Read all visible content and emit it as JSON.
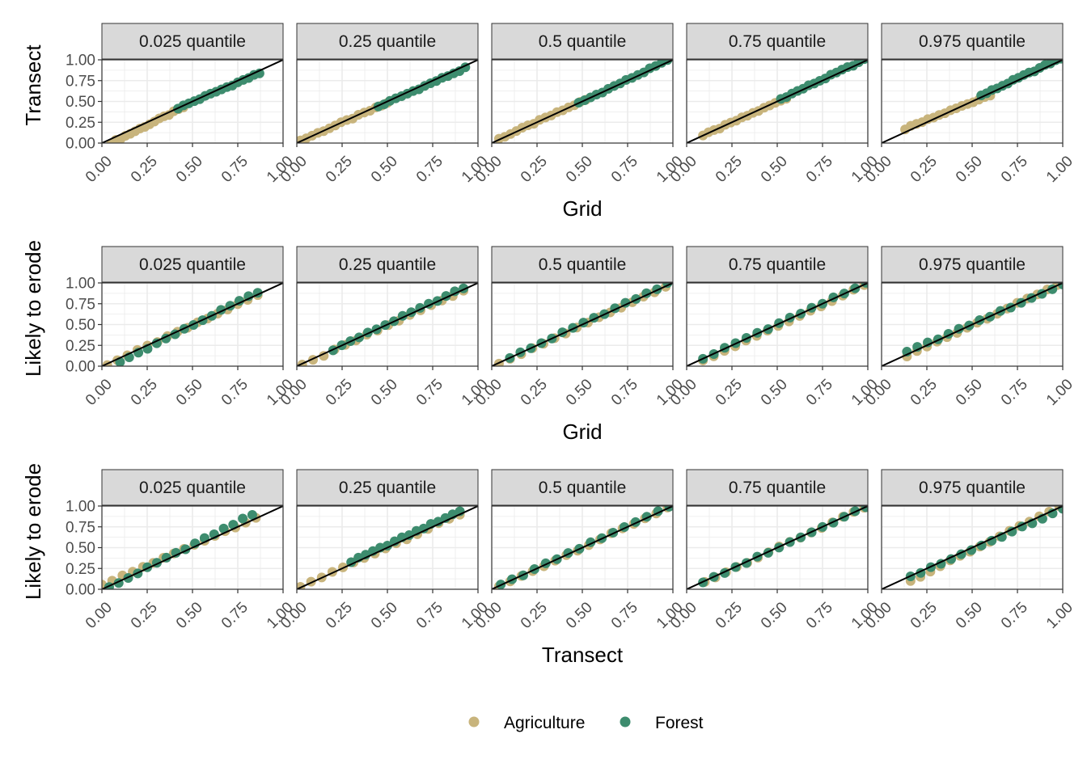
{
  "chart_data": {
    "type": "scatter",
    "facet_labels": [
      "0.025 quantile",
      "0.25 quantile",
      "0.5 quantile",
      "0.75 quantile",
      "0.975 quantile"
    ],
    "colors": {
      "Agriculture": "#c8b47c",
      "Forest": "#3d8c6e",
      "reference_line": "#000000",
      "strip_fill": "#d9d9d9",
      "grid": "#ebebeb"
    },
    "legend": {
      "position": "bottom",
      "entries": [
        "Agriculture",
        "Forest"
      ]
    },
    "reference_line": {
      "slope": 1,
      "intercept": 0
    },
    "rows": [
      {
        "xlabel": "Grid",
        "ylabel": "Transect",
        "xlim": [
          0,
          1
        ],
        "ylim": [
          0,
          1
        ],
        "xticks": [
          "0.00",
          "0.25",
          "0.50",
          "0.75",
          "1.00"
        ],
        "yticks": [
          "0.00",
          "0.25",
          "0.50",
          "0.75",
          "1.00"
        ],
        "panels": [
          {
            "facet": "0.025 quantile",
            "series": [
              {
                "name": "Agriculture",
                "x_start": 0.05,
                "x_end": 0.45,
                "y_start": 0.0,
                "y_end": 0.43
              },
              {
                "name": "Forest",
                "x_start": 0.42,
                "x_end": 0.87,
                "y_start": 0.42,
                "y_end": 0.84
              }
            ]
          },
          {
            "facet": "0.25 quantile",
            "series": [
              {
                "name": "Agriculture",
                "x_start": 0.02,
                "x_end": 0.5,
                "y_start": 0.03,
                "y_end": 0.48
              },
              {
                "name": "Forest",
                "x_start": 0.45,
                "x_end": 0.93,
                "y_start": 0.44,
                "y_end": 0.9
              }
            ]
          },
          {
            "facet": "0.5 quantile",
            "series": [
              {
                "name": "Agriculture",
                "x_start": 0.04,
                "x_end": 0.52,
                "y_start": 0.05,
                "y_end": 0.52
              },
              {
                "name": "Forest",
                "x_start": 0.48,
                "x_end": 0.97,
                "y_start": 0.48,
                "y_end": 0.99
              }
            ]
          },
          {
            "facet": "0.75 quantile",
            "series": [
              {
                "name": "Agriculture",
                "x_start": 0.09,
                "x_end": 0.55,
                "y_start": 0.09,
                "y_end": 0.54
              },
              {
                "name": "Forest",
                "x_start": 0.52,
                "x_end": 0.98,
                "y_start": 0.53,
                "y_end": 1.0
              }
            ]
          },
          {
            "facet": "0.975 quantile",
            "series": [
              {
                "name": "Agriculture",
                "x_start": 0.13,
                "x_end": 0.6,
                "y_start": 0.17,
                "y_end": 0.58
              },
              {
                "name": "Forest",
                "x_start": 0.55,
                "x_end": 0.99,
                "y_start": 0.57,
                "y_end": 1.02
              }
            ]
          }
        ]
      },
      {
        "xlabel": "Grid",
        "ylabel": "Likely to erode",
        "xlim": [
          0,
          1
        ],
        "ylim": [
          0,
          1
        ],
        "xticks": [
          "0.00",
          "0.25",
          "0.50",
          "0.75",
          "1.00"
        ],
        "yticks": [
          "0.00",
          "0.25",
          "0.50",
          "0.75",
          "1.00"
        ],
        "panels": [
          {
            "facet": "0.025 quantile",
            "series": [
              {
                "name": "Agriculture",
                "x_start": 0.03,
                "x_end": 0.86,
                "y_start": 0.02,
                "y_end": 0.85
              },
              {
                "name": "Forest",
                "x_start": 0.1,
                "x_end": 0.86,
                "y_start": 0.05,
                "y_end": 0.89
              }
            ]
          },
          {
            "facet": "0.25 quantile",
            "series": [
              {
                "name": "Agriculture",
                "x_start": 0.03,
                "x_end": 0.92,
                "y_start": 0.01,
                "y_end": 0.91
              },
              {
                "name": "Forest",
                "x_start": 0.2,
                "x_end": 0.92,
                "y_start": 0.2,
                "y_end": 0.94
              }
            ]
          },
          {
            "facet": "0.5 quantile",
            "series": [
              {
                "name": "Agriculture",
                "x_start": 0.04,
                "x_end": 0.96,
                "y_start": 0.02,
                "y_end": 0.96
              },
              {
                "name": "Forest",
                "x_start": 0.1,
                "x_end": 0.97,
                "y_start": 0.1,
                "y_end": 0.99
              }
            ]
          },
          {
            "facet": "0.75 quantile",
            "series": [
              {
                "name": "Agriculture",
                "x_start": 0.09,
                "x_end": 0.98,
                "y_start": 0.06,
                "y_end": 0.97
              },
              {
                "name": "Forest",
                "x_start": 0.09,
                "x_end": 0.99,
                "y_start": 0.09,
                "y_end": 1.0
              }
            ]
          },
          {
            "facet": "0.975 quantile",
            "series": [
              {
                "name": "Agriculture",
                "x_start": 0.14,
                "x_end": 0.97,
                "y_start": 0.12,
                "y_end": 0.98
              },
              {
                "name": "Forest",
                "x_start": 0.14,
                "x_end": 1.0,
                "y_start": 0.17,
                "y_end": 0.98
              }
            ]
          }
        ]
      },
      {
        "xlabel": "Transect",
        "ylabel": "Likely to erode",
        "xlim": [
          0,
          1
        ],
        "ylim": [
          0,
          1
        ],
        "xticks": [
          "0.00",
          "0.25",
          "0.50",
          "0.75",
          "1.00"
        ],
        "yticks": [
          "0.00",
          "0.25",
          "0.50",
          "0.75",
          "1.00"
        ],
        "panels": [
          {
            "facet": "0.025 quantile",
            "series": [
              {
                "name": "Agriculture",
                "x_start": 0.0,
                "x_end": 0.85,
                "y_start": 0.05,
                "y_end": 0.86
              },
              {
                "name": "Forest",
                "x_start": 0.04,
                "x_end": 0.83,
                "y_start": 0.02,
                "y_end": 0.9
              }
            ]
          },
          {
            "facet": "0.25 quantile",
            "series": [
              {
                "name": "Agriculture",
                "x_start": 0.02,
                "x_end": 0.9,
                "y_start": 0.03,
                "y_end": 0.9
              },
              {
                "name": "Forest",
                "x_start": 0.3,
                "x_end": 0.9,
                "y_start": 0.33,
                "y_end": 0.94
              }
            ]
          },
          {
            "facet": "0.5 quantile",
            "series": [
              {
                "name": "Agriculture",
                "x_start": 0.04,
                "x_end": 0.97,
                "y_start": 0.03,
                "y_end": 0.98
              },
              {
                "name": "Forest",
                "x_start": 0.05,
                "x_end": 0.98,
                "y_start": 0.05,
                "y_end": 1.0
              }
            ]
          },
          {
            "facet": "0.75 quantile",
            "series": [
              {
                "name": "Agriculture",
                "x_start": 0.1,
                "x_end": 0.98,
                "y_start": 0.09,
                "y_end": 0.98
              },
              {
                "name": "Forest",
                "x_start": 0.09,
                "x_end": 0.99,
                "y_start": 0.08,
                "y_end": 0.99
              }
            ]
          },
          {
            "facet": "0.975 quantile",
            "series": [
              {
                "name": "Agriculture",
                "x_start": 0.16,
                "x_end": 0.98,
                "y_start": 0.1,
                "y_end": 0.99
              },
              {
                "name": "Forest",
                "x_start": 0.16,
                "x_end": 1.0,
                "y_start": 0.15,
                "y_end": 0.96
              }
            ]
          }
        ]
      }
    ]
  }
}
